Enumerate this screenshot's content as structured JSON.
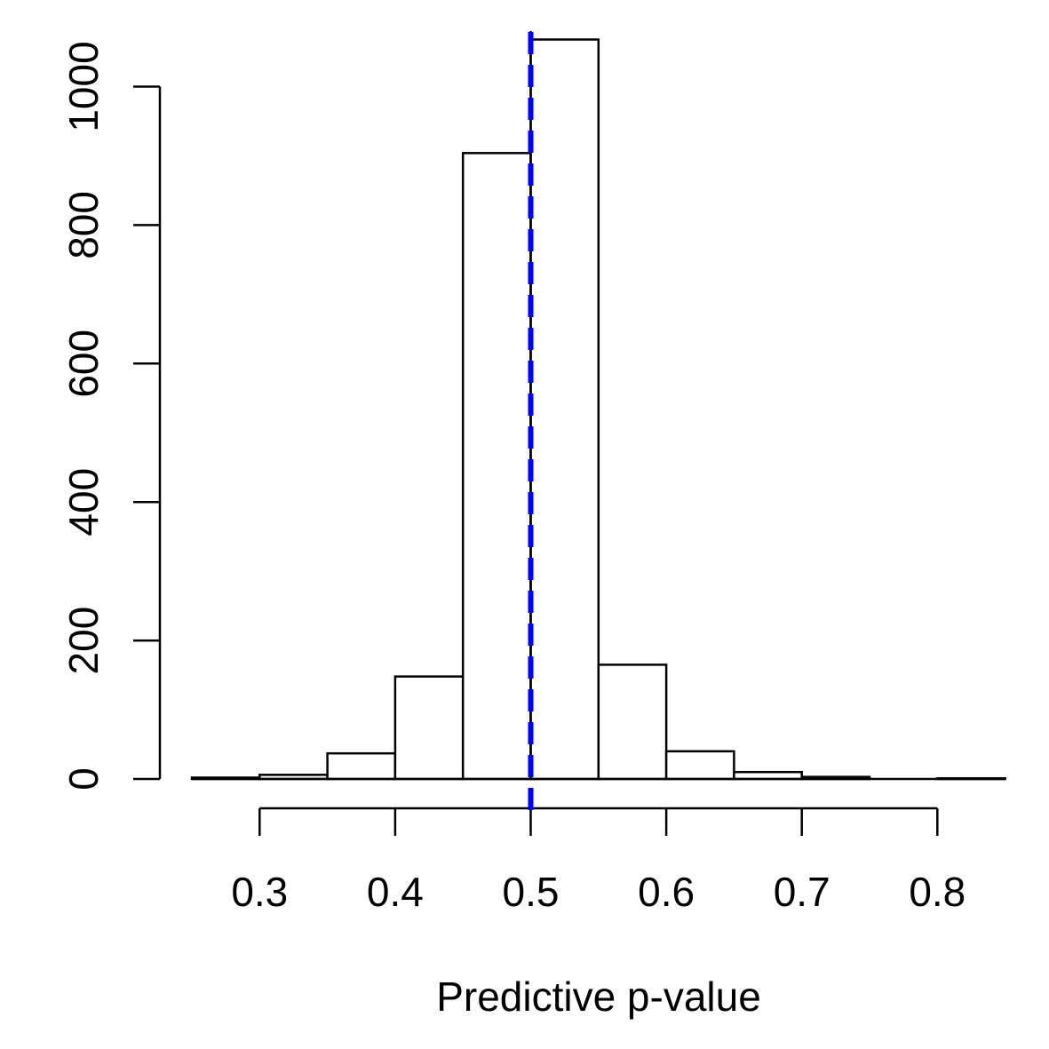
{
  "chart_data": {
    "type": "bar",
    "xlabel": "Predictive p-value",
    "ylabel": "",
    "title": "",
    "bins": [
      {
        "x0": 0.25,
        "x1": 0.3,
        "count": 2
      },
      {
        "x0": 0.3,
        "x1": 0.35,
        "count": 6
      },
      {
        "x0": 0.35,
        "x1": 0.4,
        "count": 37
      },
      {
        "x0": 0.4,
        "x1": 0.45,
        "count": 148
      },
      {
        "x0": 0.45,
        "x1": 0.5,
        "count": 904
      },
      {
        "x0": 0.5,
        "x1": 0.55,
        "count": 1068
      },
      {
        "x0": 0.55,
        "x1": 0.6,
        "count": 165
      },
      {
        "x0": 0.6,
        "x1": 0.65,
        "count": 40
      },
      {
        "x0": 0.65,
        "x1": 0.7,
        "count": 10
      },
      {
        "x0": 0.7,
        "x1": 0.75,
        "count": 3
      },
      {
        "x0": 0.75,
        "x1": 0.8,
        "count": 0
      },
      {
        "x0": 0.8,
        "x1": 0.85,
        "count": 1
      }
    ],
    "xlim": [
      0.25,
      0.85
    ],
    "ylim": [
      0,
      1068
    ],
    "x_ticks": [
      "0.3",
      "0.4",
      "0.5",
      "0.6",
      "0.7",
      "0.8"
    ],
    "y_ticks": [
      "0",
      "200",
      "400",
      "600",
      "800",
      "1000"
    ],
    "reference_line": {
      "x": 0.5,
      "style": "dashed",
      "color": "#0000ff"
    },
    "bar_fill": "#ffffff",
    "bar_stroke": "#000000",
    "grid": false
  }
}
